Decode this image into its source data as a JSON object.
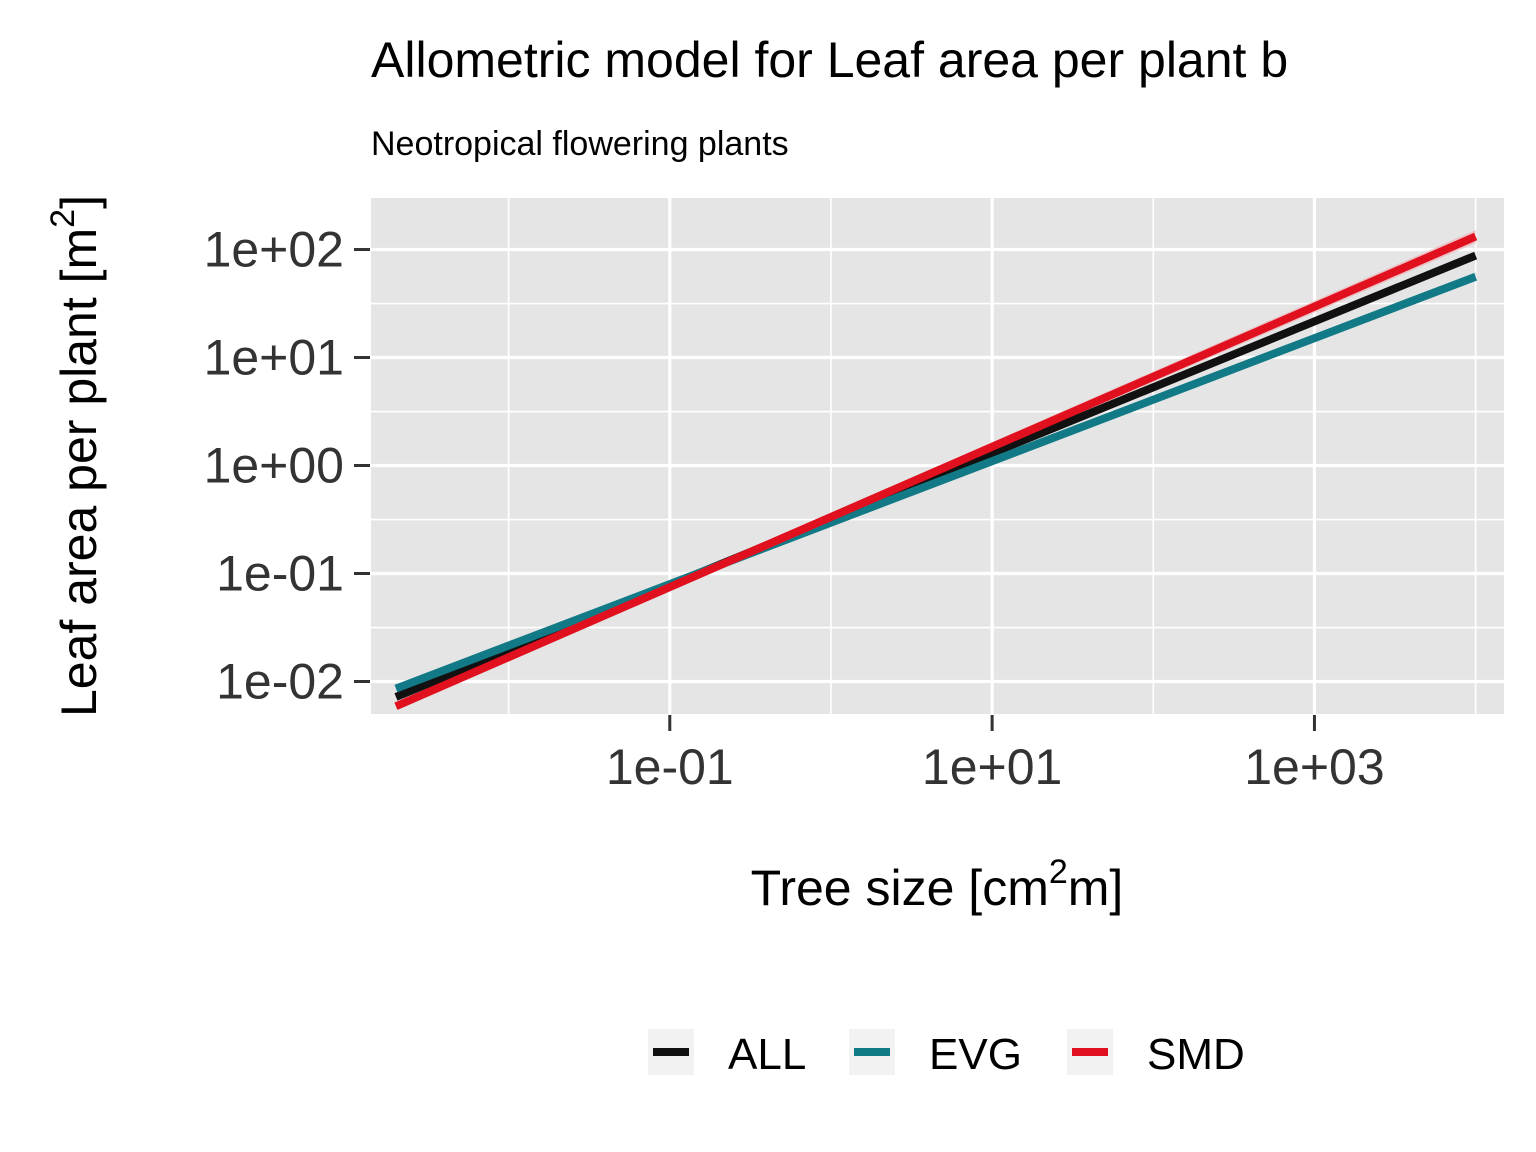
{
  "chart_data": {
    "type": "line",
    "title": "Allometric model for Leaf area per plant b",
    "subtitle": "Neotropical flowering plants",
    "xlabel": {
      "base": "Tree size [cm",
      "sup": "2",
      "tail": "m]"
    },
    "ylabel": {
      "base": "Leaf area per plant [m",
      "sup": "2",
      "tail": "]"
    },
    "x_scale": "log10",
    "y_scale": "log10",
    "xlim": [
      0.0014,
      15000
    ],
    "ylim": [
      0.005,
      300
    ],
    "x_ticks": [
      {
        "value": 0.1,
        "label": "1e-01"
      },
      {
        "value": 10,
        "label": "1e+01"
      },
      {
        "value": 1000,
        "label": "1e+03"
      }
    ],
    "x_minor": [
      0.01,
      1,
      100,
      10000
    ],
    "y_ticks": [
      {
        "value": 0.01,
        "label": "1e-02"
      },
      {
        "value": 0.1,
        "label": "1e-01"
      },
      {
        "value": 1,
        "label": "1e+00"
      },
      {
        "value": 10,
        "label": "1e+01"
      },
      {
        "value": 100,
        "label": "1e+02"
      }
    ],
    "y_minor": [
      0.0316,
      0.316,
      3.16,
      31.6
    ],
    "grid": true,
    "legend_position": "bottom",
    "series": [
      {
        "name": "ALL",
        "color": "#111111",
        "band_color": "#c8c8c8",
        "x": [
          0.002,
          10000
        ],
        "y": [
          0.0072,
          88
        ],
        "band_halfwidth_log": 0.035
      },
      {
        "name": "EVG",
        "color": "#117a86",
        "band_color": "#a8cfd3",
        "x": [
          0.002,
          10000
        ],
        "y": [
          0.0086,
          56
        ],
        "band_halfwidth_log": 0.04
      },
      {
        "name": "SMD",
        "color": "#e0101f",
        "band_color": "#eeb3b8",
        "x": [
          0.002,
          10000
        ],
        "y": [
          0.0059,
          132
        ],
        "band_halfwidth_log": 0.06
      }
    ]
  }
}
